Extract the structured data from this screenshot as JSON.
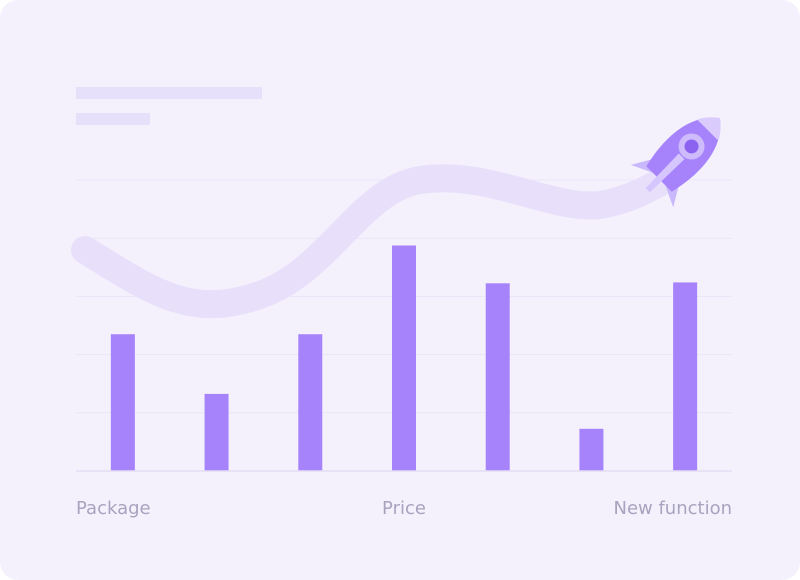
{
  "chart_data": {
    "type": "bar",
    "categories": [
      "Package",
      "",
      "",
      "Price",
      "",
      "",
      "New function"
    ],
    "values": [
      47,
      26.5,
      47,
      77.5,
      64.5,
      14.5,
      64.8
    ],
    "ylim": [
      0,
      100
    ],
    "grid": true,
    "colors": {
      "card_background": "#F4F1FD",
      "bar": "#A683FB",
      "gridline": "#EAE5F7",
      "trend_band": "#E8E0FB",
      "placeholder": "#E7E0FA",
      "label": "#A8A3BE"
    },
    "decorations": {
      "icon": "rocket-icon",
      "trend_line": "wavy-trend-band"
    }
  }
}
